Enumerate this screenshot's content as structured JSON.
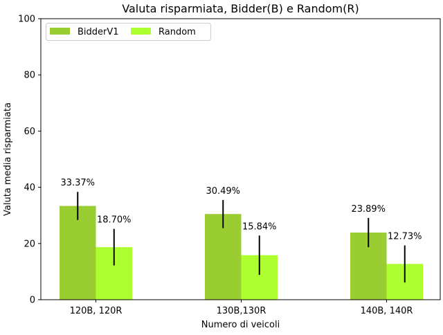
{
  "chart_data": {
    "type": "bar",
    "title": "Valuta risparmiata, Bidder(B) e Random(R)",
    "xlabel": "Numero di veicoli",
    "ylabel": "Valuta media risparmiata",
    "ylim": [
      0,
      100
    ],
    "yticks": [
      0,
      20,
      40,
      60,
      80,
      100
    ],
    "categories": [
      "120B, 120R",
      "130B,130R",
      "140B, 140R"
    ],
    "grid": false,
    "legend_position": "top-left",
    "series": [
      {
        "name": "BidderV1",
        "color": "#9acd32",
        "values": [
          33.37,
          30.49,
          23.89
        ],
        "errors": [
          5.0,
          5.0,
          5.2
        ],
        "labels": [
          "33.37%",
          "30.49%",
          "23.89%"
        ]
      },
      {
        "name": "Random",
        "color": "#adff2f",
        "values": [
          18.7,
          15.84,
          12.73
        ],
        "errors": [
          6.5,
          7.0,
          6.6
        ],
        "labels": [
          "18.70%",
          "15.84%",
          "12.73%"
        ]
      }
    ]
  }
}
